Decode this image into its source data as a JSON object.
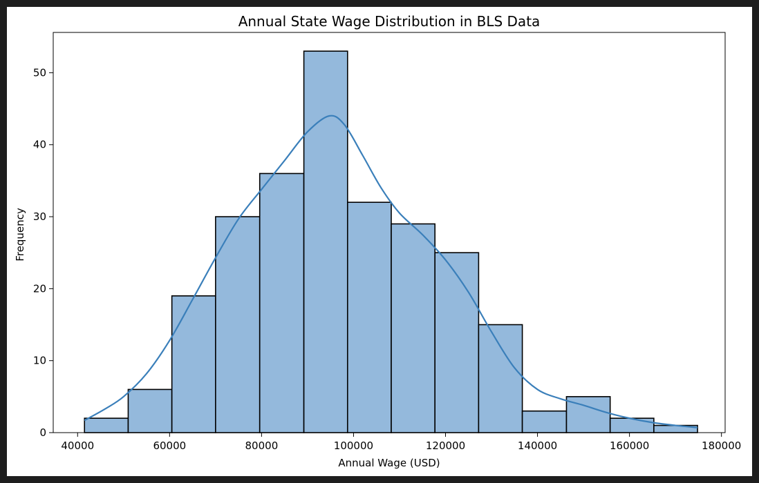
{
  "chart_data": {
    "type": "bar",
    "subtype": "histogram",
    "title": "Annual State Wage Distribution in BLS Data",
    "xlabel": "Annual Wage (USD)",
    "ylabel": "Frequency",
    "xlim": [
      34700,
      180800
    ],
    "ylim": [
      0,
      55.6
    ],
    "x_ticks": [
      40000,
      60000,
      80000,
      100000,
      120000,
      140000,
      160000,
      180000
    ],
    "x_tick_labels": [
      "40000",
      "60000",
      "80000",
      "100000",
      "120000",
      "140000",
      "160000",
      "180000"
    ],
    "y_ticks": [
      0,
      10,
      20,
      30,
      40,
      50
    ],
    "y_tick_labels": [
      "0",
      "10",
      "20",
      "30",
      "40",
      "50"
    ],
    "bin_edges": [
      41500,
      51000,
      60500,
      70000,
      79600,
      89200,
      98700,
      108200,
      117700,
      127200,
      136700,
      146300,
      155800,
      165300,
      174800
    ],
    "values": [
      2,
      6,
      19,
      30,
      36,
      53,
      32,
      29,
      25,
      15,
      3,
      5,
      2,
      1
    ],
    "bar_color": "#94b9dc",
    "edge_color": "#000000",
    "kde": {
      "name": "",
      "color": "#3a7fba",
      "x": [
        41500,
        46000,
        50000,
        55000,
        60000,
        65000,
        70000,
        75000,
        80000,
        85000,
        90000,
        94700,
        98000,
        102000,
        106000,
        110000,
        115000,
        120000,
        125000,
        130000,
        135000,
        140000,
        145000,
        150000,
        155000,
        160000,
        165000,
        170000,
        174800
      ],
      "y": [
        1.7,
        3.3,
        5.0,
        8.2,
        12.8,
        18.5,
        24.3,
        29.7,
        33.8,
        37.8,
        41.8,
        44.0,
        42.8,
        38.5,
        34.0,
        30.5,
        27.5,
        24.0,
        19.5,
        14.0,
        9.0,
        6.0,
        4.7,
        3.8,
        2.8,
        2.0,
        1.4,
        1.0,
        0.7
      ]
    },
    "grid": false,
    "legend": "none"
  }
}
